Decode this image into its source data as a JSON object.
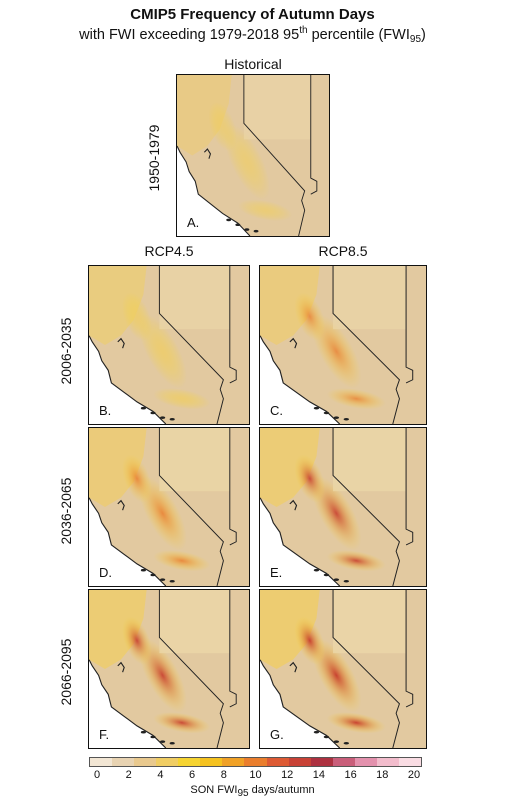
{
  "title": {
    "line1": "CMIP5 Frequency of Autumn Days",
    "line2_prefix": "with FWI exceeding 1979-2018 95",
    "line2_sup": "th",
    "line2_mid": " percentile (FWI",
    "line2_sub": "95",
    "line2_end": ")"
  },
  "columns": {
    "historical": "Historical",
    "rcp45": "RCP4.5",
    "rcp85": "RCP8.5"
  },
  "rows": {
    "r0": "1950-1979",
    "r1": "2006-2035",
    "r2": "2036-2065",
    "r3": "2066-2095"
  },
  "panels": [
    {
      "id": "A",
      "label": "A.",
      "intensity": 0.15
    },
    {
      "id": "B",
      "label": "B.",
      "intensity": 0.4
    },
    {
      "id": "C",
      "label": "C.",
      "intensity": 0.45
    },
    {
      "id": "D",
      "label": "D.",
      "intensity": 0.6
    },
    {
      "id": "E",
      "label": "E.",
      "intensity": 0.75
    },
    {
      "id": "F",
      "label": "F.",
      "intensity": 0.8
    },
    {
      "id": "G",
      "label": "G.",
      "intensity": 0.95
    }
  ],
  "colorbar": {
    "ticks": [
      "0",
      "2",
      "4",
      "6",
      "8",
      "10",
      "12",
      "14",
      "16",
      "18",
      "20"
    ],
    "colors": [
      "#f2e6d4",
      "#e8d3b2",
      "#e9c98e",
      "#f0cd63",
      "#f6d431",
      "#f5c21f",
      "#f0a126",
      "#ea7e2d",
      "#dd5a34",
      "#c84236",
      "#ad3140",
      "#c95e7a",
      "#e391ad",
      "#f2bccc",
      "#f9dce3"
    ],
    "label_prefix": "SON FWI",
    "label_sub": "95",
    "label_suffix": " days/autumn"
  }
}
